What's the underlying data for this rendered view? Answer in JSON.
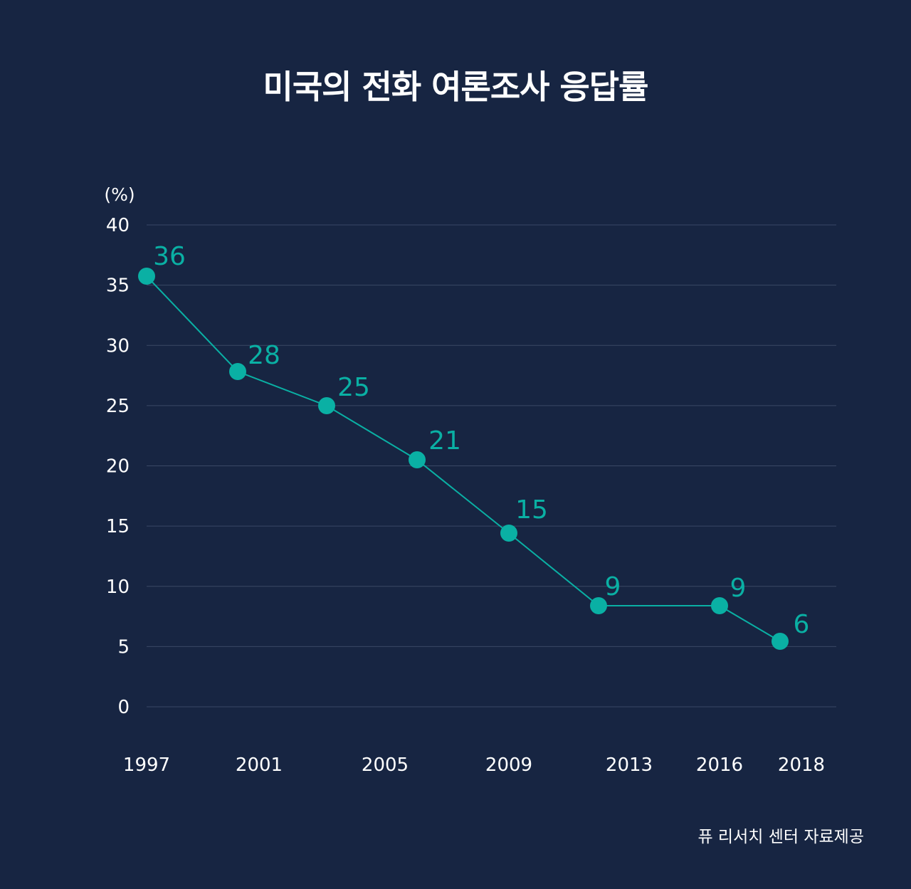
{
  "colors": {
    "background": "#172542",
    "accent": "#0ab0a4",
    "grid": "#3a4865",
    "text": "#ffffff"
  },
  "chart_data": {
    "type": "line",
    "title": "미국의 전화 여론조사 응답률",
    "ylabel": "(%)",
    "xlabel": "",
    "ylim": [
      0,
      40
    ],
    "yticks": [
      "0",
      "5",
      "10",
      "15",
      "20",
      "25",
      "30",
      "35",
      "40"
    ],
    "xticks": [
      "1997",
      "2001",
      "2005",
      "2009",
      "2013",
      "2016",
      "2018"
    ],
    "grid": true,
    "series": [
      {
        "points": [
          {
            "x": 1997,
            "y": 36,
            "label": "36"
          },
          {
            "x": 2000,
            "y": 28,
            "label": "28"
          },
          {
            "x": 2003,
            "y": 25,
            "label": "25"
          },
          {
            "x": 2006,
            "y": 21,
            "label": "21"
          },
          {
            "x": 2009,
            "y": 15,
            "label": "15"
          },
          {
            "x": 2012,
            "y": 9,
            "label": "9"
          },
          {
            "x": 2016,
            "y": 9,
            "label": "9"
          },
          {
            "x": 2018,
            "y": 6,
            "label": "6"
          }
        ]
      }
    ]
  },
  "source": "퓨 리서치 센터 자료제공"
}
